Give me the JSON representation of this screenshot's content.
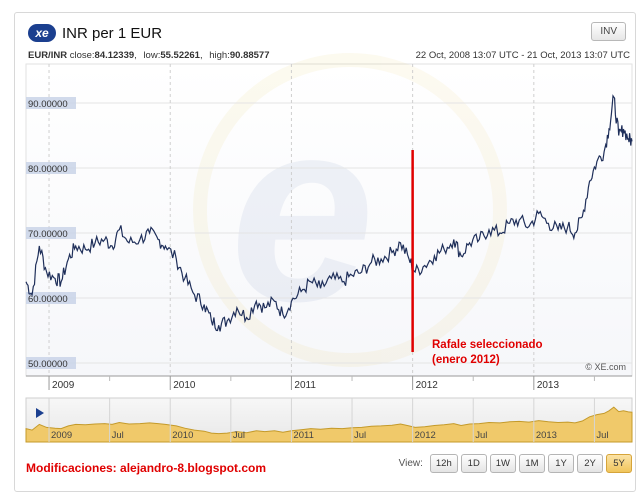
{
  "header": {
    "logo_text": "xe",
    "title": "INR per 1 EUR",
    "inv_label": "INV"
  },
  "subheader": {
    "pair": "EUR/INR",
    "close_label": "close:",
    "close_value": "84.12339",
    "low_label": "low:",
    "low_value": "55.52261",
    "high_label": "high:",
    "high_value": "90.88577",
    "date_range": "22 Oct, 2008 13:07 UTC - 21 Oct, 2013 13:07 UTC"
  },
  "watermark": "© XE.com",
  "annotation": {
    "line1": "Rafale seleccionado",
    "line2": "(enero 2012)",
    "color": "#e00000"
  },
  "footer": {
    "credit": "Modificaciones: alejandro-8.blogspot.com",
    "view_label": "View:",
    "buttons": [
      "12h",
      "1D",
      "1W",
      "1M",
      "1Y",
      "2Y",
      "5Y"
    ],
    "active_button": "5Y"
  },
  "navigator": {
    "labels": [
      "2009",
      "Jul",
      "2010",
      "Jul",
      "2011",
      "Jul",
      "2012",
      "Jul",
      "2013",
      "Jul"
    ]
  },
  "colors": {
    "line": "#1f2f5a",
    "label_bg": "#c9d3e8",
    "nav_fill": "#f0c96a",
    "accent": "#1b3f8f"
  },
  "chart_data": {
    "type": "line",
    "title": "INR per 1 EUR",
    "xlabel": "",
    "ylabel": "",
    "xlim": [
      2008.81,
      2013.81
    ],
    "ylim": [
      48,
      96
    ],
    "yticks": [
      50,
      60,
      70,
      80,
      90
    ],
    "ytick_labels": [
      "50.00000",
      "60.00000",
      "70.00000",
      "80.00000",
      "90.00000"
    ],
    "xticks": [
      2009,
      2010,
      2011,
      2012,
      2013
    ],
    "xtick_labels": [
      "2009",
      "2010",
      "2011",
      "2012",
      "2013"
    ],
    "minor_xticks": [
      2009.5,
      2010.5,
      2011.5,
      2012.5,
      2013.5
    ],
    "grid": true,
    "annotation_x": 2012.0,
    "series": [
      {
        "name": "EUR/INR",
        "x": [
          2008.81,
          2008.86,
          2008.92,
          2008.98,
          2009.05,
          2009.1,
          2009.16,
          2009.22,
          2009.3,
          2009.38,
          2009.46,
          2009.52,
          2009.58,
          2009.66,
          2009.75,
          2009.83,
          2009.9,
          2009.96,
          2010.05,
          2010.12,
          2010.2,
          2010.28,
          2010.34,
          2010.4,
          2010.47,
          2010.55,
          2010.63,
          2010.71,
          2010.78,
          2010.86,
          2010.93,
          2011.0,
          2011.08,
          2011.16,
          2011.24,
          2011.33,
          2011.42,
          2011.5,
          2011.58,
          2011.66,
          2011.74,
          2011.83,
          2011.9,
          2011.97,
          2012.02,
          2012.1,
          2012.18,
          2012.26,
          2012.34,
          2012.4,
          2012.47,
          2012.55,
          2012.63,
          2012.72,
          2012.8,
          2012.88,
          2012.96,
          2013.04,
          2013.12,
          2013.2,
          2013.28,
          2013.34,
          2013.4,
          2013.46,
          2013.52,
          2013.58,
          2013.62,
          2013.66,
          2013.7,
          2013.74,
          2013.78,
          2013.81
        ],
        "values": [
          62.5,
          60.5,
          68.0,
          64.0,
          63.0,
          62.5,
          66.0,
          68.0,
          67.5,
          68.5,
          69.0,
          68.0,
          70.5,
          68.5,
          69.0,
          70.0,
          69.0,
          68.0,
          66.0,
          63.0,
          60.5,
          59.0,
          56.5,
          55.8,
          56.5,
          58.5,
          57.0,
          59.5,
          58.5,
          59.5,
          57.5,
          59.5,
          61.0,
          62.5,
          61.5,
          63.0,
          62.5,
          63.5,
          64.0,
          65.5,
          66.0,
          67.0,
          68.5,
          66.0,
          64.0,
          65.0,
          66.5,
          67.5,
          69.0,
          66.5,
          68.5,
          69.0,
          70.5,
          70.0,
          71.5,
          72.0,
          71.0,
          73.0,
          71.5,
          70.5,
          71.0,
          70.0,
          72.5,
          78.0,
          81.0,
          82.5,
          86.0,
          90.9,
          85.0,
          86.0,
          84.5,
          84.1
        ]
      }
    ]
  }
}
